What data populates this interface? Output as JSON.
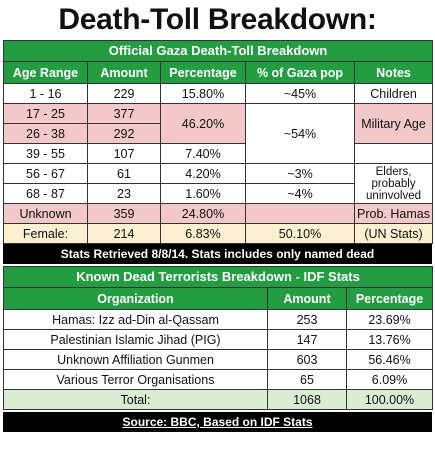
{
  "title": "Death-Toll Breakdown:",
  "gaza_table": {
    "title": "Official Gaza Death-Toll Breakdown",
    "headers": [
      "Age Range",
      "Amount",
      "Percentage",
      "% of Gaza pop",
      "Notes"
    ],
    "rows": [
      {
        "age": "1 - 16",
        "amount": 229,
        "percentage": "15.80%",
        "gaza_pop": "~45%",
        "notes": "Children"
      },
      {
        "age": "17 - 25",
        "amount": 377,
        "percentage": "46.20%",
        "gaza_pop": "~54%",
        "notes": "Military Age"
      },
      {
        "age": "26 - 38",
        "amount": 292
      },
      {
        "age": "39 - 55",
        "amount": 107,
        "percentage": "7.40%"
      },
      {
        "age": "56 - 67",
        "amount": 61,
        "percentage": "4.20%",
        "gaza_pop": "~3%",
        "notes": "Elders, probably uninvolved"
      },
      {
        "age": "68 - 87",
        "amount": 23,
        "percentage": "1.60%",
        "gaza_pop": "~4%"
      },
      {
        "age": "Unknown",
        "amount": 359,
        "percentage": "24.80%",
        "notes": "Prob. Hamas"
      },
      {
        "age": "Female:",
        "amount": 214,
        "percentage": "6.83%",
        "gaza_pop": "50.10%",
        "notes": "(UN Stats)"
      }
    ]
  },
  "note": "Stats Retrieved 8/8/14. Stats includes only named dead",
  "idf_table": {
    "title": "Known Dead Terrorists Breakdown - IDF Stats",
    "headers": [
      "Organization",
      "Amount",
      "Percentage"
    ],
    "rows": [
      {
        "organization": "Hamas: Izz ad-Din al-Qassam",
        "amount": 253,
        "percentage": "23.69%"
      },
      {
        "organization": "Palestinian Islamic Jihad (PIG)",
        "amount": 147,
        "percentage": "13.76%"
      },
      {
        "organization": "Unknown Affiliation Gunmen",
        "amount": 603,
        "percentage": "56.46%"
      },
      {
        "organization": "Various Terror Organisations",
        "amount": 65,
        "percentage": "6.09%"
      }
    ],
    "total": {
      "label": "Total:",
      "amount": 1068,
      "percentage": "100.00%"
    }
  },
  "source": "Source: BBC, Based on IDF Stats"
}
